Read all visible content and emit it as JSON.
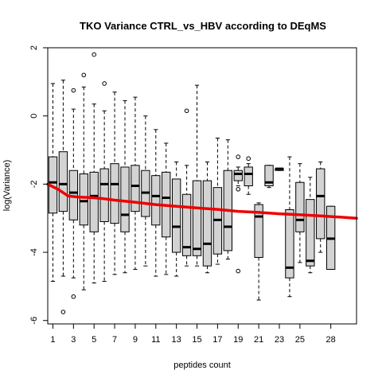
{
  "chart_data": {
    "type": "boxplot",
    "title": "TKO Variance CTRL_vs_HBV according to DEqMS",
    "xlabel": "peptides count",
    "ylabel": "log(Variance)",
    "xlim": [
      0.5,
      30.5
    ],
    "ylim": [
      -6.1,
      2.0
    ],
    "x_ticks": [
      1,
      3,
      5,
      7,
      9,
      11,
      13,
      15,
      17,
      19,
      21,
      23,
      25,
      28
    ],
    "x_tick_labels": [
      "1",
      "3",
      "5",
      "7",
      "9",
      "11",
      "13",
      "15",
      "17",
      "19",
      "21",
      "23",
      "25",
      "28"
    ],
    "y_ticks": [
      -6,
      -4,
      -2,
      0,
      2
    ],
    "y_tick_labels": [
      "-6",
      "-4",
      "-2",
      "0",
      "2"
    ],
    "box_fill": "#d3d3d3",
    "trend_color": "#ee0000",
    "boxes": [
      {
        "x": 1,
        "q1": -2.85,
        "median": -1.95,
        "q3": -1.2,
        "low": -4.85,
        "high": 0.95,
        "outliers": []
      },
      {
        "x": 2,
        "q1": -2.8,
        "median": -2.0,
        "q3": -1.05,
        "low": -4.7,
        "high": 1.05,
        "outliers": [
          -5.75
        ]
      },
      {
        "x": 3,
        "q1": -3.05,
        "median": -2.25,
        "q3": -1.6,
        "low": -4.75,
        "high": 0.2,
        "outliers": [
          0.75,
          -5.3
        ]
      },
      {
        "x": 4,
        "q1": -3.2,
        "median": -2.5,
        "q3": -1.7,
        "low": -5.1,
        "high": 0.85,
        "outliers": [
          1.2
        ]
      },
      {
        "x": 5,
        "q1": -3.4,
        "median": -2.35,
        "q3": -1.65,
        "low": -4.9,
        "high": 0.35,
        "outliers": [
          1.8
        ]
      },
      {
        "x": 6,
        "q1": -3.1,
        "median": -2.0,
        "q3": -1.55,
        "low": -4.85,
        "high": 0.15,
        "outliers": [
          0.95
        ]
      },
      {
        "x": 7,
        "q1": -3.15,
        "median": -2.0,
        "q3": -1.4,
        "low": -4.65,
        "high": 0.7,
        "outliers": []
      },
      {
        "x": 8,
        "q1": -3.4,
        "median": -2.9,
        "q3": -1.5,
        "low": -4.6,
        "high": 0.45,
        "outliers": []
      },
      {
        "x": 9,
        "q1": -2.8,
        "median": -2.05,
        "q3": -1.45,
        "low": -4.5,
        "high": 0.55,
        "outliers": []
      },
      {
        "x": 10,
        "q1": -2.95,
        "median": -2.25,
        "q3": -1.6,
        "low": -4.4,
        "high": 0.0,
        "outliers": []
      },
      {
        "x": 11,
        "q1": -3.2,
        "median": -2.35,
        "q3": -1.75,
        "low": -4.7,
        "high": -0.4,
        "outliers": []
      },
      {
        "x": 12,
        "q1": -3.55,
        "median": -2.4,
        "q3": -1.65,
        "low": -4.65,
        "high": -0.8,
        "outliers": []
      },
      {
        "x": 13,
        "q1": -4.0,
        "median": -3.25,
        "q3": -1.85,
        "low": -4.7,
        "high": -1.35,
        "outliers": []
      },
      {
        "x": 14,
        "q1": -4.1,
        "median": -3.85,
        "q3": -2.3,
        "low": -4.4,
        "high": -1.45,
        "outliers": [
          0.15
        ]
      },
      {
        "x": 15,
        "q1": -4.1,
        "median": -3.9,
        "q3": -1.9,
        "low": -4.4,
        "high": 0.9,
        "outliers": []
      },
      {
        "x": 16,
        "q1": -4.4,
        "median": -3.75,
        "q3": -1.9,
        "low": -4.6,
        "high": -1.35,
        "outliers": []
      },
      {
        "x": 17,
        "q1": -4.05,
        "median": -3.05,
        "q3": -2.1,
        "low": -4.35,
        "high": -0.65,
        "outliers": []
      },
      {
        "x": 18,
        "q1": -3.95,
        "median": -3.25,
        "q3": -1.6,
        "low": -4.2,
        "high": -0.7,
        "outliers": []
      },
      {
        "x": 19,
        "q1": -1.9,
        "median": -1.7,
        "q3": -1.6,
        "low": -2.05,
        "high": -1.5,
        "outliers": [
          -1.2,
          -2.15,
          -4.55
        ]
      },
      {
        "x": 20,
        "q1": -2.05,
        "median": -1.7,
        "q3": -1.5,
        "low": -2.3,
        "high": -1.4,
        "outliers": [
          -1.25
        ]
      },
      {
        "x": 21,
        "q1": -4.15,
        "median": -2.95,
        "q3": -2.6,
        "low": -5.4,
        "high": -2.55,
        "outliers": []
      },
      {
        "x": 22,
        "q1": -2.05,
        "median": -1.95,
        "q3": -1.45,
        "low": -2.1,
        "high": -1.45,
        "outliers": []
      },
      {
        "x": 23,
        "q1": -1.6,
        "median": -1.55,
        "q3": -1.55,
        "low": -1.6,
        "high": -1.55,
        "outliers": []
      },
      {
        "x": 24,
        "q1": -4.75,
        "median": -4.45,
        "q3": -2.75,
        "low": -5.3,
        "high": -1.2,
        "outliers": []
      },
      {
        "x": 25,
        "q1": -3.4,
        "median": -3.05,
        "q3": -1.95,
        "low": -4.3,
        "high": -1.4,
        "outliers": []
      },
      {
        "x": 26,
        "q1": -4.4,
        "median": -4.25,
        "q3": -2.45,
        "low": -4.6,
        "high": -1.8,
        "outliers": []
      },
      {
        "x": 27,
        "q1": -3.6,
        "median": -2.35,
        "q3": -1.55,
        "low": -4.0,
        "high": -1.35,
        "outliers": []
      },
      {
        "x": 28,
        "q1": -4.5,
        "median": -3.6,
        "q3": -2.65,
        "low": -4.5,
        "high": -2.65,
        "outliers": []
      }
    ],
    "trend": {
      "x": [
        0.5,
        1.5,
        2.5,
        3.5,
        5,
        6,
        7,
        9,
        11,
        13,
        15,
        17,
        19,
        21,
        23,
        25,
        27,
        28,
        29,
        30.5
      ],
      "y": [
        -2.0,
        -2.15,
        -2.35,
        -2.38,
        -2.4,
        -2.43,
        -2.47,
        -2.53,
        -2.6,
        -2.65,
        -2.7,
        -2.74,
        -2.8,
        -2.83,
        -2.87,
        -2.9,
        -2.93,
        -2.95,
        -2.97,
        -3.0
      ]
    }
  }
}
